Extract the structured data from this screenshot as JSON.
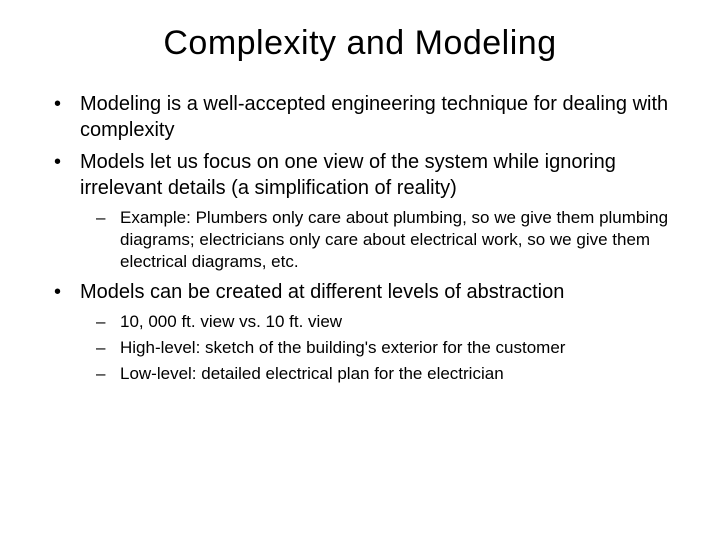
{
  "title": "Complexity and Modeling",
  "bullets": [
    {
      "text": "Modeling is a well-accepted engineering technique for dealing with complexity",
      "sub": []
    },
    {
      "text": "Models let us focus on one view of the system while ignoring irrelevant details (a simplification of reality)",
      "sub": [
        "Example: Plumbers only care about plumbing, so we give them plumbing diagrams; electricians only care about electrical work, so we give them electrical diagrams, etc."
      ]
    },
    {
      "text": "Models can be created at different levels of abstraction",
      "sub": [
        "10, 000 ft. view vs. 10 ft. view",
        "High-level: sketch of the building's exterior for the customer",
        "Low-level: detailed electrical plan for the electrician"
      ]
    }
  ],
  "colors": {
    "background": "#ffffff",
    "text": "#000000"
  },
  "typography": {
    "title_fontsize": 34,
    "level1_fontsize": 20,
    "level2_fontsize": 17,
    "font_family": "Arial"
  }
}
